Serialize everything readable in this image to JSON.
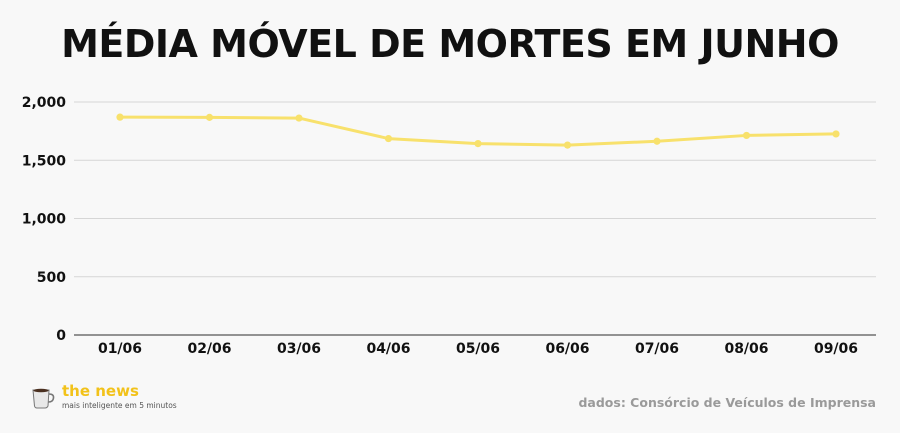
{
  "title": "MÉDIA MÓVEL DE MORTES EM JUNHO",
  "chart_data": {
    "type": "line",
    "categories": [
      "01/06",
      "02/06",
      "03/06",
      "04/06",
      "05/06",
      "06/06",
      "07/06",
      "08/06",
      "09/06"
    ],
    "series": [
      {
        "values": [
          1870,
          1868,
          1862,
          1686,
          1643,
          1630,
          1663,
          1713,
          1726
        ]
      }
    ],
    "yticks": [
      0,
      500,
      1000,
      1500,
      2000
    ],
    "ytick_labels": [
      "0",
      "500",
      "1,000",
      "1,500",
      "2,000"
    ],
    "ylim": [
      0,
      2000
    ],
    "grid": true,
    "line_color": "#f8e16c"
  },
  "branding": {
    "name": "the news",
    "tagline": "mais inteligente em 5 minutos",
    "icon": "coffee-cup-icon",
    "accent_color": "#f2c21a"
  },
  "source": "dados: Consórcio de Veículos de Imprensa"
}
